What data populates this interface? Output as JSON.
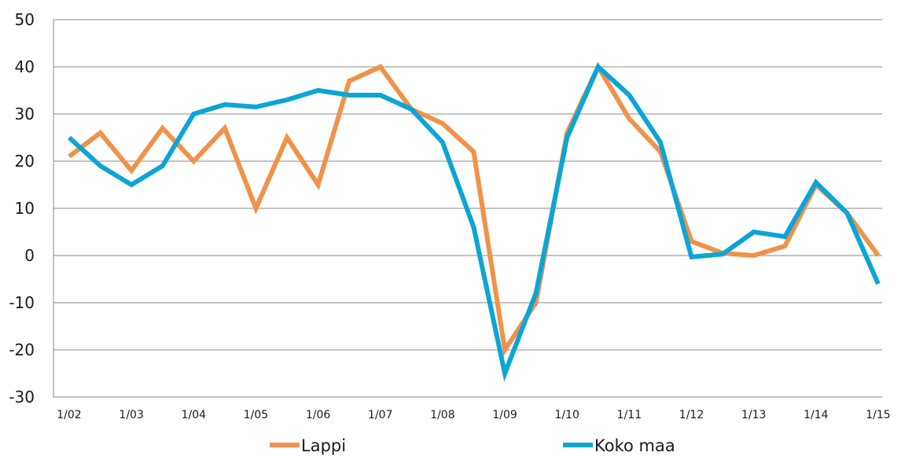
{
  "chart_data": {
    "type": "line",
    "x": [
      "1/02",
      "",
      "1/03",
      "",
      "1/04",
      "",
      "1/05",
      "",
      "1/06",
      "",
      "1/07",
      "",
      "1/08",
      "",
      "1/09",
      "",
      "1/10",
      "",
      "1/11",
      "",
      "1/12",
      "",
      "1/13",
      "",
      "1/14",
      "",
      "1/15"
    ],
    "x_tick_labels": [
      "1/02",
      "1/03",
      "1/04",
      "1/05",
      "1/06",
      "1/07",
      "1/08",
      "1/09",
      "1/10",
      "1/11",
      "1/12",
      "1/13",
      "1/14",
      "1/15"
    ],
    "y_ticks": [
      50,
      40,
      30,
      20,
      10,
      0,
      -10,
      -20,
      -30
    ],
    "ylim": [
      -30,
      50
    ],
    "grid": true,
    "legend_position": "bottom",
    "series": [
      {
        "name": "Lappi",
        "color": "#f0924a",
        "values": [
          21,
          26,
          18,
          27,
          20,
          27,
          10,
          25,
          15,
          37,
          40,
          31,
          28,
          22,
          -20,
          -10,
          26,
          40,
          29,
          22,
          3,
          0.5,
          0,
          2,
          15,
          9,
          0
        ]
      },
      {
        "name": "Koko maa",
        "color": "#0ba5d6",
        "values": [
          25,
          19,
          15,
          19,
          30,
          32,
          31.5,
          33,
          35,
          34,
          34,
          31,
          24,
          6,
          -25,
          -8,
          25,
          40,
          34,
          24,
          -0.3,
          0.3,
          5,
          4,
          15.5,
          9,
          -6
        ]
      }
    ]
  }
}
